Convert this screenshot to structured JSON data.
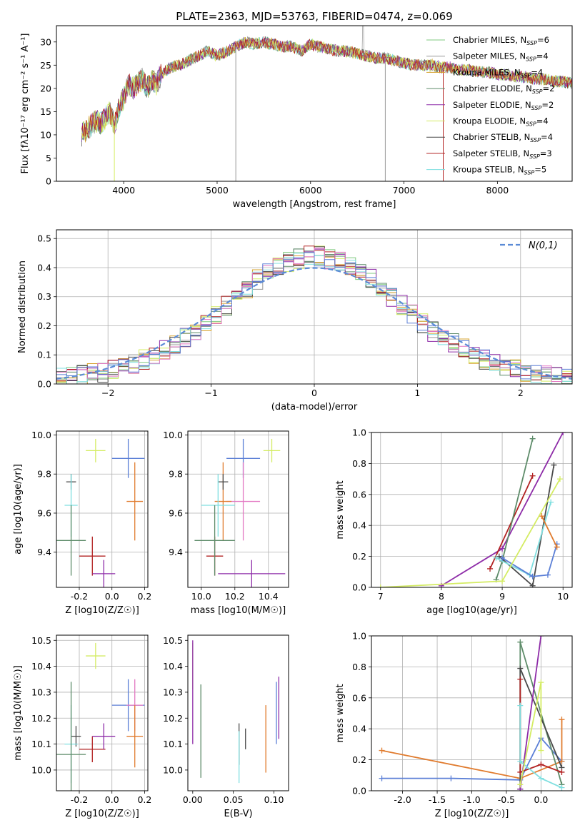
{
  "figure": {
    "title": "PLATE=2363, MJD=53763, FIBERID=0474, z=0.069"
  },
  "colors": {
    "Chabrier MILES": "#7fc97f",
    "Salpeter MILES": "#999999",
    "Kroupa MILES": "#d6a12b",
    "Chabrier ELODIE": "#5e8c6a",
    "Salpeter ELODIE": "#8e2ca8",
    "Kroupa ELODIE": "#d4ec63",
    "Chabrier STELIB": "#4a4a4a",
    "Salpeter STELIB": "#b22222",
    "Kroupa STELIB": "#7fdfe0",
    "pink": "#e377c2",
    "blue": "#5b7fd6",
    "orange": "#e07b2e",
    "gaussian": "#5b8bd6"
  },
  "chart_data": [
    {
      "type": "line",
      "title": "PLATE=2363, MJD=53763, FIBERID=0474, z=0.069",
      "xlabel": "wavelength [Angstrom, rest frame]",
      "ylabel": "Flux [fλ10⁻¹⁷ erg cm⁻² s⁻¹ A⁻¹]",
      "xlim": [
        3280,
        8800
      ],
      "ylim": [
        0,
        33.5
      ],
      "xticks": [
        4000,
        5000,
        6000,
        7000,
        8000
      ],
      "yticks": [
        0,
        5,
        10,
        15,
        20,
        25,
        30
      ],
      "grid": false,
      "legend_position": "top-right",
      "legend": [
        "Chabrier MILES, N_SSP=6",
        "Salpeter MILES, N_SSP=4",
        "Kroupa MILES, N_SSP=4",
        "Chabrier ELODIE, N_SSP=2",
        "Salpeter ELODIE, N_SSP=2",
        "Kroupa ELODIE, N_SSP=4",
        "Chabrier STELIB, N_SSP=4",
        "Salpeter STELIB, N_SSP=3",
        "Kroupa STELIB, N_SSP=5"
      ],
      "spectrum_x": [
        3550,
        3600,
        3650,
        3700,
        3750,
        3800,
        3850,
        3900,
        3950,
        4000,
        4050,
        4100,
        4150,
        4200,
        4250,
        4300,
        4350,
        4400,
        4500,
        4600,
        4700,
        4800,
        4900,
        5000,
        5100,
        5200,
        5300,
        5400,
        5500,
        5600,
        5700,
        5800,
        5900,
        6000,
        6100,
        6200,
        6300,
        6400,
        6500,
        6600,
        6700,
        6800,
        6900,
        7000,
        7100,
        7200,
        7300,
        7400,
        7500,
        7600,
        7700,
        7800,
        7900,
        8000,
        8100,
        8200,
        8300,
        8400,
        8500,
        8600,
        8700,
        8800
      ],
      "spectrum_y": [
        10,
        11,
        12,
        13,
        12.5,
        13.5,
        15,
        12,
        16,
        18,
        21,
        20,
        21,
        22,
        20,
        22,
        21,
        23,
        24.5,
        25,
        26,
        27,
        28,
        27,
        28,
        29,
        30,
        29.5,
        30,
        29.5,
        29,
        29,
        28,
        29.5,
        29,
        28.5,
        28,
        28,
        27.5,
        27,
        26.5,
        26.5,
        26,
        25.5,
        25,
        25,
        25,
        24.5,
        24.5,
        24,
        24,
        23.5,
        23.5,
        23,
        23,
        22.5,
        22.5,
        22,
        22,
        21.5,
        21.5,
        21
      ]
    },
    {
      "type": "line",
      "xlabel": "(data-model)/error",
      "ylabel": "Normed distribution",
      "xlim": [
        -2.5,
        2.5
      ],
      "ylim": [
        0,
        0.53
      ],
      "xticks": [
        -2,
        -1,
        0,
        1,
        2
      ],
      "yticks": [
        0.0,
        0.1,
        0.2,
        0.3,
        0.4,
        0.5
      ],
      "grid": true,
      "legend_position": "top-right",
      "legend": [
        "N(0,1)"
      ],
      "hist_x": [
        -2.5,
        -2.4,
        -2.3,
        -2.2,
        -2.1,
        -2.0,
        -1.9,
        -1.8,
        -1.7,
        -1.6,
        -1.5,
        -1.4,
        -1.3,
        -1.2,
        -1.1,
        -1.0,
        -0.9,
        -0.8,
        -0.7,
        -0.6,
        -0.5,
        -0.4,
        -0.3,
        -0.2,
        -0.1,
        0.0,
        0.1,
        0.2,
        0.3,
        0.4,
        0.5,
        0.6,
        0.7,
        0.8,
        0.9,
        1.0,
        1.1,
        1.2,
        1.3,
        1.4,
        1.5,
        1.6,
        1.7,
        1.8,
        1.9,
        2.0,
        2.1,
        2.2,
        2.3,
        2.4
      ],
      "hist_y": [
        0.02,
        0.025,
        0.03,
        0.035,
        0.04,
        0.05,
        0.06,
        0.07,
        0.085,
        0.1,
        0.12,
        0.14,
        0.16,
        0.18,
        0.21,
        0.24,
        0.27,
        0.3,
        0.33,
        0.36,
        0.39,
        0.41,
        0.42,
        0.43,
        0.44,
        0.44,
        0.43,
        0.42,
        0.41,
        0.39,
        0.36,
        0.33,
        0.3,
        0.27,
        0.24,
        0.21,
        0.18,
        0.16,
        0.14,
        0.12,
        0.1,
        0.085,
        0.07,
        0.06,
        0.05,
        0.04,
        0.035,
        0.03,
        0.025,
        0.02
      ]
    },
    {
      "type": "scatter",
      "xlabel": "Z [log10(Z/Z☉)]",
      "ylabel": "age [log10(age/yr)]",
      "xlim": [
        -0.34,
        0.22
      ],
      "ylim": [
        9.22,
        10.02
      ],
      "xticks": [
        -0.2,
        0.0,
        0.2
      ],
      "yticks": [
        9.4,
        9.6,
        9.8,
        10.0
      ],
      "grid": true,
      "points": [
        {
          "x": -0.1,
          "y": 9.92,
          "xerr": 0.06,
          "yerr": 0.06,
          "color": "#d4ec63"
        },
        {
          "x": 0.1,
          "y": 9.88,
          "xerr": 0.1,
          "yerr": 0.1,
          "color": "#5b7fd6"
        },
        {
          "x": 0.14,
          "y": 9.66,
          "xerr": 0.05,
          "yerr": 0.2,
          "color": "#e07b2e"
        },
        {
          "x": -0.25,
          "y": 9.76,
          "xerr": 0.03,
          "yerr": 0.04,
          "color": "#4a4a4a"
        },
        {
          "x": -0.25,
          "y": 9.64,
          "xerr": 0.04,
          "yerr": 0.16,
          "color": "#7fdfe0"
        },
        {
          "x": -0.12,
          "y": 9.38,
          "xerr": 0.08,
          "yerr": 0.1,
          "color": "#b22222"
        },
        {
          "x": -0.05,
          "y": 9.29,
          "xerr": 0.07,
          "yerr": 0.07,
          "color": "#8e2ca8"
        },
        {
          "x": -0.25,
          "y": 9.46,
          "xerr": 0.09,
          "yerr": 0.18,
          "color": "#5e8c6a"
        }
      ]
    },
    {
      "type": "scatter",
      "xlabel": "mass [log10(M/M☉)]",
      "xlim": [
        9.92,
        10.52
      ],
      "ylim": [
        9.22,
        10.02
      ],
      "xticks": [
        10.0,
        10.2,
        10.4
      ],
      "yticks": [
        9.4,
        9.6,
        9.8,
        10.0
      ],
      "grid": true,
      "points": [
        {
          "x": 10.42,
          "y": 9.92,
          "xerr": 0.05,
          "yerr": 0.06,
          "color": "#d4ec63"
        },
        {
          "x": 10.25,
          "y": 9.88,
          "xerr": 0.1,
          "yerr": 0.1,
          "color": "#5b7fd6"
        },
        {
          "x": 10.25,
          "y": 9.66,
          "xerr": 0.1,
          "yerr": 0.2,
          "color": "#e377c2"
        },
        {
          "x": 10.13,
          "y": 9.66,
          "xerr": 0.05,
          "yerr": 0.2,
          "color": "#e07b2e"
        },
        {
          "x": 10.13,
          "y": 9.76,
          "xerr": 0.03,
          "yerr": 0.04,
          "color": "#4a4a4a"
        },
        {
          "x": 10.1,
          "y": 9.64,
          "xerr": 0.1,
          "yerr": 0.16,
          "color": "#7fdfe0"
        },
        {
          "x": 10.08,
          "y": 9.38,
          "xerr": 0.05,
          "yerr": 0.1,
          "color": "#b22222"
        },
        {
          "x": 10.3,
          "y": 9.29,
          "xerr": 0.2,
          "yerr": 0.07,
          "color": "#8e2ca8"
        },
        {
          "x": 10.08,
          "y": 9.46,
          "xerr": 0.12,
          "yerr": 0.18,
          "color": "#5e8c6a"
        }
      ]
    },
    {
      "type": "line",
      "xlabel": "age [log10(age/yr)]",
      "ylabel": "mass weight",
      "xlim": [
        6.85,
        10.15
      ],
      "ylim": [
        0,
        1
      ],
      "xticks": [
        7,
        8,
        9,
        10
      ],
      "yticks": [
        0.0,
        0.2,
        0.4,
        0.6,
        0.8,
        1.0
      ],
      "grid": true,
      "series": [
        {
          "x": [
            8.0,
            9.0,
            10.0
          ],
          "y": [
            0.01,
            0.25,
            1.0
          ],
          "color": "#8e2ca8"
        },
        {
          "x": [
            8.8,
            9.5
          ],
          "y": [
            0.12,
            0.72
          ],
          "color": "#b22222"
        },
        {
          "x": [
            8.9,
            9.0,
            9.5
          ],
          "y": [
            0.05,
            0.17,
            0.96
          ],
          "color": "#5e8c6a"
        },
        {
          "x": [
            8.95,
            9.5,
            9.85
          ],
          "y": [
            0.2,
            0.01,
            0.79
          ],
          "color": "#4a4a4a"
        },
        {
          "x": [
            8.9,
            9.45,
            9.8
          ],
          "y": [
            0.19,
            0.08,
            0.55
          ],
          "color": "#7fdfe0"
        },
        {
          "x": [
            9.0,
            9.5,
            9.75,
            9.9
          ],
          "y": [
            0.19,
            0.07,
            0.08,
            0.28
          ],
          "color": "#5b7fd6"
        },
        {
          "x": [
            9.65,
            9.9
          ],
          "y": [
            0.46,
            0.26
          ],
          "color": "#e07b2e"
        },
        {
          "x": [
            7.0,
            9.0,
            9.95
          ],
          "y": [
            0.0,
            0.04,
            0.7
          ],
          "color": "#d4ec63"
        }
      ]
    },
    {
      "type": "scatter",
      "xlabel": "Z [log10(Z/Z☉)]",
      "ylabel": "mass [log10(M/M☉)]",
      "xlim": [
        -0.34,
        0.22
      ],
      "ylim": [
        9.92,
        10.52
      ],
      "xticks": [
        -0.2,
        0.0,
        0.2
      ],
      "yticks": [
        10.0,
        10.1,
        10.2,
        10.3,
        10.4,
        10.5
      ],
      "grid": true,
      "points": [
        {
          "x": -0.1,
          "y": 10.44,
          "xerr": 0.06,
          "yerr": 0.05,
          "color": "#d4ec63"
        },
        {
          "x": 0.1,
          "y": 10.25,
          "xerr": 0.1,
          "yerr": 0.1,
          "color": "#5b7fd6"
        },
        {
          "x": 0.14,
          "y": 10.25,
          "xerr": 0.05,
          "yerr": 0.1,
          "color": "#e377c2"
        },
        {
          "x": 0.14,
          "y": 10.13,
          "xerr": 0.05,
          "yerr": 0.12,
          "color": "#e07b2e"
        },
        {
          "x": -0.22,
          "y": 10.13,
          "xerr": 0.03,
          "yerr": 0.04,
          "color": "#4a4a4a"
        },
        {
          "x": -0.25,
          "y": 10.1,
          "xerr": 0.04,
          "yerr": 0.15,
          "color": "#7fdfe0"
        },
        {
          "x": -0.12,
          "y": 10.08,
          "xerr": 0.08,
          "yerr": 0.05,
          "color": "#b22222"
        },
        {
          "x": -0.05,
          "y": 10.13,
          "xerr": 0.07,
          "yerr": 0.05,
          "color": "#8e2ca8"
        },
        {
          "x": -0.25,
          "y": 10.06,
          "xerr": 0.09,
          "yerr": 0.28,
          "color": "#5e8c6a"
        }
      ]
    },
    {
      "type": "scatter",
      "xlabel": "E(B-V)",
      "xlim": [
        -0.006,
        0.118
      ],
      "ylim": [
        9.92,
        10.52
      ],
      "xticks": [
        0.0,
        0.05,
        0.1
      ],
      "yticks": [
        10.0,
        10.1,
        10.2,
        10.3,
        10.4,
        10.5
      ],
      "grid": false,
      "points": [
        {
          "x": 0.0,
          "y": 10.4,
          "yerr": 0.09,
          "color": "#d4ec63"
        },
        {
          "x": 0.0,
          "y": 10.3,
          "yerr": 0.2,
          "color": "#8e2ca8"
        },
        {
          "x": 0.01,
          "y": 10.15,
          "yerr": 0.18,
          "color": "#5e8c6a"
        },
        {
          "x": 0.057,
          "y": 10.1,
          "yerr": 0.08,
          "color": "#4a4a4a"
        },
        {
          "x": 0.057,
          "y": 10.05,
          "yerr": 0.1,
          "color": "#7fdfe0"
        },
        {
          "x": 0.065,
          "y": 10.12,
          "yerr": 0.04,
          "color": "#4a4a4a"
        },
        {
          "x": 0.09,
          "y": 10.12,
          "yerr": 0.13,
          "color": "#e07b2e"
        },
        {
          "x": 0.103,
          "y": 10.22,
          "yerr": 0.12,
          "color": "#5b7fd6"
        },
        {
          "x": 0.106,
          "y": 10.24,
          "yerr": 0.12,
          "color": "#8e2ca8"
        }
      ]
    },
    {
      "type": "line",
      "xlabel": "Z [log10(Z/Z☉)]",
      "ylabel": "mass weight",
      "xlim": [
        -2.45,
        0.45
      ],
      "ylim": [
        0,
        1
      ],
      "xticks": [
        -2.0,
        -1.5,
        -1.0,
        -0.5,
        0.0
      ],
      "yticks": [
        0.0,
        0.2,
        0.4,
        0.6,
        0.8,
        1.0
      ],
      "grid": true,
      "series": [
        {
          "x": [
            -2.3,
            -1.3,
            -0.3,
            0.0,
            0.3
          ],
          "y": [
            0.08,
            0.08,
            0.07,
            0.34,
            0.19
          ],
          "color": "#5b7fd6"
        },
        {
          "x": [
            -2.3,
            -0.3,
            0.3,
            0.3
          ],
          "y": [
            0.26,
            0.08,
            0.19,
            0.46
          ],
          "color": "#e07b2e"
        },
        {
          "x": [
            -0.3,
            -0.3,
            0.3
          ],
          "y": [
            0.01,
            0.96,
            0.04
          ],
          "color": "#5e8c6a"
        },
        {
          "x": [
            -0.3,
            -0.3,
            0.3
          ],
          "y": [
            0.01,
            0.79,
            0.15
          ],
          "color": "#4a4a4a"
        },
        {
          "x": [
            -0.3,
            -0.3,
            0.0,
            0.3
          ],
          "y": [
            0.72,
            0.12,
            0.17,
            0.12
          ],
          "color": "#b22222"
        },
        {
          "x": [
            -0.3,
            0.0
          ],
          "y": [
            0.01,
            1.0
          ],
          "color": "#8e2ca8"
        },
        {
          "x": [
            -0.3,
            -0.3,
            0.0,
            0.3
          ],
          "y": [
            0.55,
            0.19,
            0.08,
            0.02
          ],
          "color": "#7fdfe0"
        },
        {
          "x": [
            -0.3,
            0.0,
            0.0
          ],
          "y": [
            0.04,
            0.7,
            0.26
          ],
          "color": "#d4ec63"
        }
      ]
    }
  ]
}
